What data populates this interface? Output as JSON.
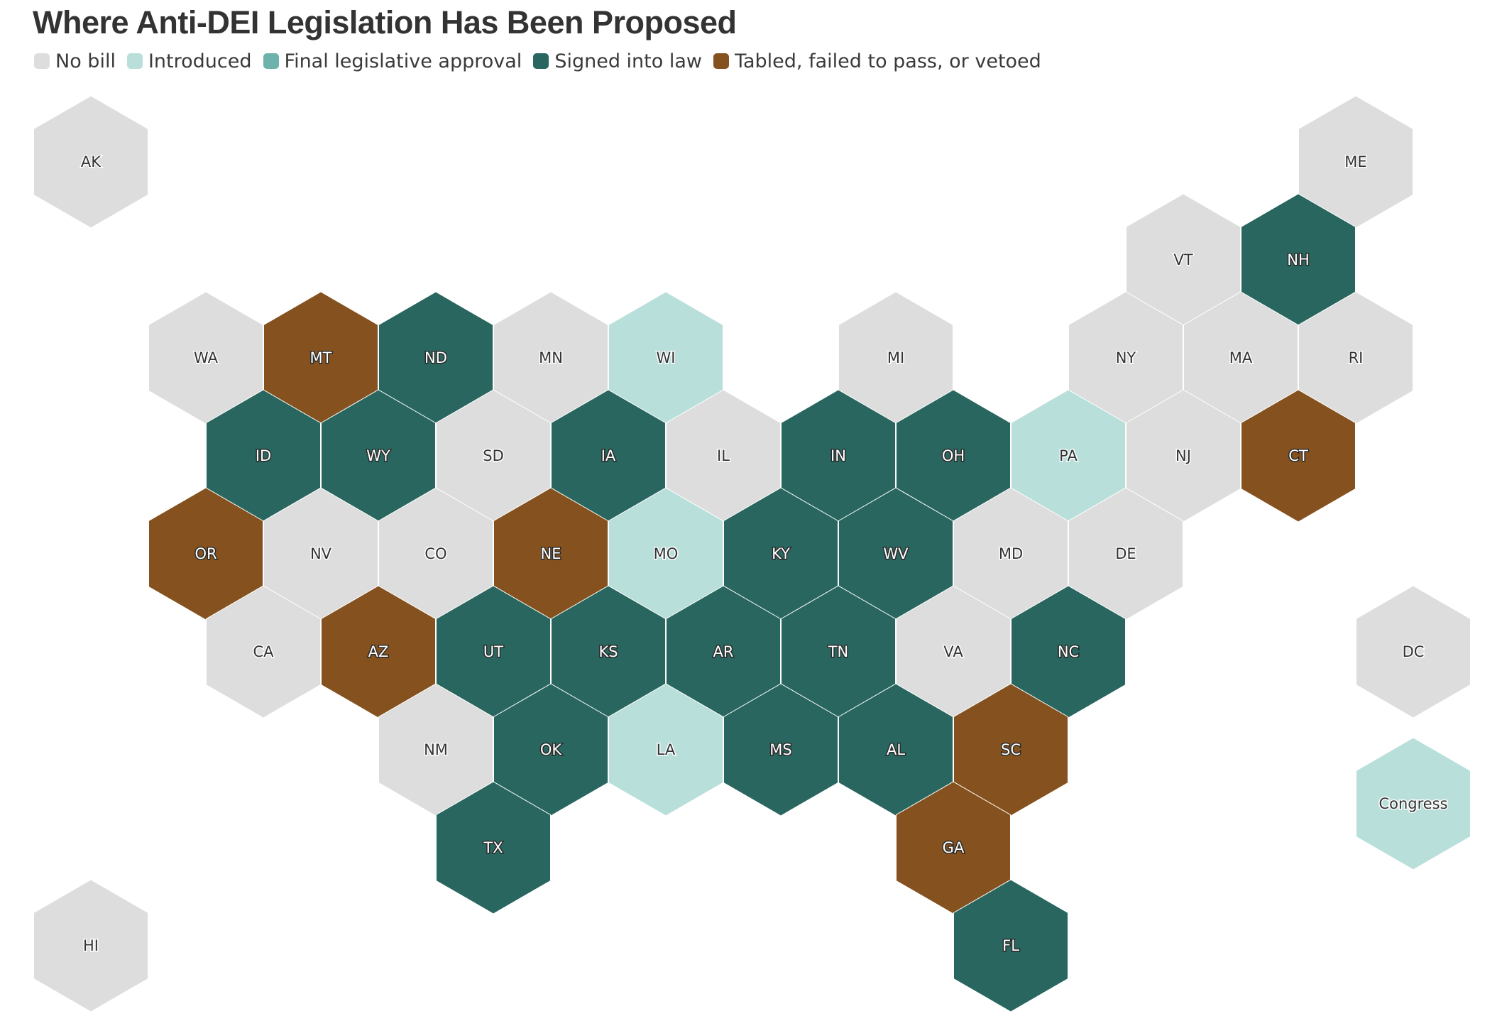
{
  "title": "Where Anti-DEI Legislation Has Been Proposed",
  "legend": [
    {
      "key": "none",
      "label": "No bill",
      "color": "#dddddd"
    },
    {
      "key": "introduced",
      "label": "Introduced",
      "color": "#b9dfdb"
    },
    {
      "key": "final",
      "label": "Final legislative approval",
      "color": "#6db3ab"
    },
    {
      "key": "signed",
      "label": "Signed into law",
      "color": "#29665f"
    },
    {
      "key": "tabled",
      "label": "Tabled, failed to pass, or vetoed",
      "color": "#85521f"
    }
  ],
  "states": [
    {
      "label": "AK",
      "status": "none",
      "row": 0,
      "col": 0
    },
    {
      "label": "ME",
      "status": "none",
      "row": 0,
      "col": 11
    },
    {
      "label": "VT",
      "status": "none",
      "row": 1,
      "col": 9.5
    },
    {
      "label": "NH",
      "status": "signed",
      "row": 1,
      "col": 10.5
    },
    {
      "label": "WA",
      "status": "none",
      "row": 2,
      "col": 1
    },
    {
      "label": "MT",
      "status": "tabled",
      "row": 2,
      "col": 2
    },
    {
      "label": "ND",
      "status": "signed",
      "row": 2,
      "col": 3
    },
    {
      "label": "MN",
      "status": "none",
      "row": 2,
      "col": 4
    },
    {
      "label": "WI",
      "status": "introduced",
      "row": 2,
      "col": 5
    },
    {
      "label": "MI",
      "status": "none",
      "row": 2,
      "col": 7
    },
    {
      "label": "NY",
      "status": "none",
      "row": 2,
      "col": 9
    },
    {
      "label": "MA",
      "status": "none",
      "row": 2,
      "col": 10
    },
    {
      "label": "RI",
      "status": "none",
      "row": 2,
      "col": 11
    },
    {
      "label": "ID",
      "status": "signed",
      "row": 3,
      "col": 1.5
    },
    {
      "label": "WY",
      "status": "signed",
      "row": 3,
      "col": 2.5
    },
    {
      "label": "SD",
      "status": "none",
      "row": 3,
      "col": 3.5
    },
    {
      "label": "IA",
      "status": "signed",
      "row": 3,
      "col": 4.5
    },
    {
      "label": "IL",
      "status": "none",
      "row": 3,
      "col": 5.5
    },
    {
      "label": "IN",
      "status": "signed",
      "row": 3,
      "col": 6.5
    },
    {
      "label": "OH",
      "status": "signed",
      "row": 3,
      "col": 7.5
    },
    {
      "label": "PA",
      "status": "introduced",
      "row": 3,
      "col": 8.5
    },
    {
      "label": "NJ",
      "status": "none",
      "row": 3,
      "col": 9.5
    },
    {
      "label": "CT",
      "status": "tabled",
      "row": 3,
      "col": 10.5
    },
    {
      "label": "OR",
      "status": "tabled",
      "row": 4,
      "col": 1
    },
    {
      "label": "NV",
      "status": "none",
      "row": 4,
      "col": 2
    },
    {
      "label": "CO",
      "status": "none",
      "row": 4,
      "col": 3
    },
    {
      "label": "NE",
      "status": "tabled",
      "row": 4,
      "col": 4
    },
    {
      "label": "MO",
      "status": "introduced",
      "row": 4,
      "col": 5
    },
    {
      "label": "KY",
      "status": "signed",
      "row": 4,
      "col": 6
    },
    {
      "label": "WV",
      "status": "signed",
      "row": 4,
      "col": 7
    },
    {
      "label": "MD",
      "status": "none",
      "row": 4,
      "col": 8
    },
    {
      "label": "DE",
      "status": "none",
      "row": 4,
      "col": 9
    },
    {
      "label": "CA",
      "status": "none",
      "row": 5,
      "col": 1.5
    },
    {
      "label": "AZ",
      "status": "tabled",
      "row": 5,
      "col": 2.5
    },
    {
      "label": "UT",
      "status": "signed",
      "row": 5,
      "col": 3.5
    },
    {
      "label": "KS",
      "status": "signed",
      "row": 5,
      "col": 4.5
    },
    {
      "label": "AR",
      "status": "signed",
      "row": 5,
      "col": 5.5
    },
    {
      "label": "TN",
      "status": "signed",
      "row": 5,
      "col": 6.5
    },
    {
      "label": "VA",
      "status": "none",
      "row": 5,
      "col": 7.5
    },
    {
      "label": "NC",
      "status": "signed",
      "row": 5,
      "col": 8.5
    },
    {
      "label": "DC",
      "status": "none",
      "row": 5,
      "col": 11.5
    },
    {
      "label": "NM",
      "status": "none",
      "row": 6,
      "col": 3
    },
    {
      "label": "OK",
      "status": "signed",
      "row": 6,
      "col": 4
    },
    {
      "label": "LA",
      "status": "introduced",
      "row": 6,
      "col": 5
    },
    {
      "label": "MS",
      "status": "signed",
      "row": 6,
      "col": 6
    },
    {
      "label": "AL",
      "status": "signed",
      "row": 6,
      "col": 7
    },
    {
      "label": "SC",
      "status": "tabled",
      "row": 6,
      "col": 8
    },
    {
      "label": "Congress",
      "status": "introduced",
      "row": 6.55,
      "col": 11.5
    },
    {
      "label": "TX",
      "status": "signed",
      "row": 7,
      "col": 3.5
    },
    {
      "label": "GA",
      "status": "tabled",
      "row": 7,
      "col": 7.5
    },
    {
      "label": "HI",
      "status": "none",
      "row": 8,
      "col": 0
    },
    {
      "label": "FL",
      "status": "signed",
      "row": 8,
      "col": 8
    }
  ]
}
